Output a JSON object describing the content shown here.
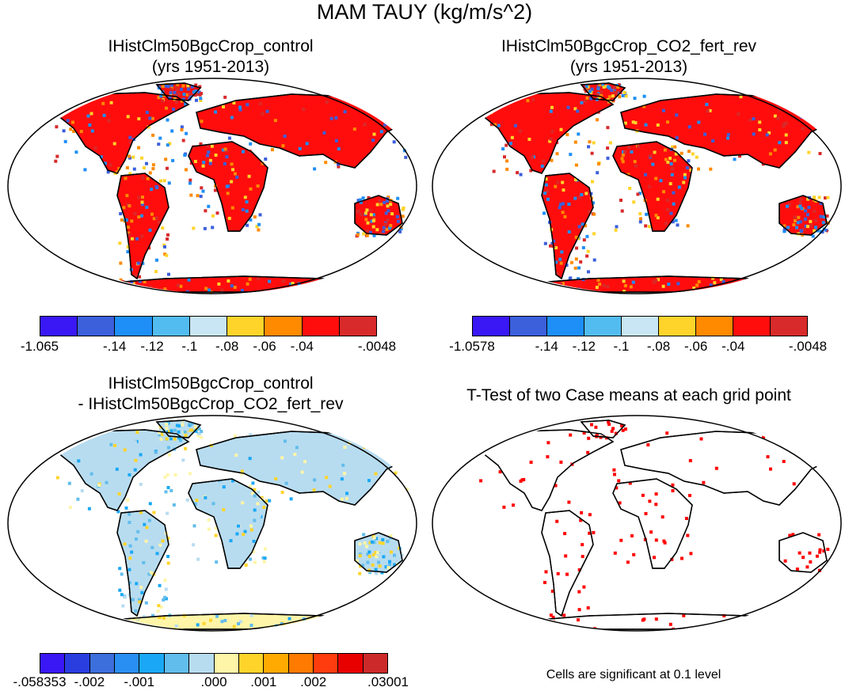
{
  "title": "MAM TAUY (kg/m/s^2)",
  "panels": [
    {
      "title_line1": "IHistClm50BgcCrop_control",
      "title_line2": "(yrs 1951-2013)",
      "colorbar": {
        "colors": [
          "#3a17f5",
          "#3c5fdc",
          "#1e8ff7",
          "#52bcf0",
          "#c8e6f4",
          "#ffd42a",
          "#ff8a00",
          "#ff0d0d",
          "#d82a2a"
        ],
        "labels": [
          "-1.065",
          "-.14",
          "-.12",
          "-.1",
          "-.08",
          "-.06",
          "-.04",
          "-.0048"
        ]
      }
    },
    {
      "title_line1": "IHistClm50BgcCrop_CO2_fert_rev",
      "title_line2": "(yrs 1951-2013)",
      "colorbar": {
        "colors": [
          "#3a17f5",
          "#3c5fdc",
          "#1e8ff7",
          "#52bcf0",
          "#c8e6f4",
          "#ffd42a",
          "#ff8a00",
          "#ff0d0d",
          "#d82a2a"
        ],
        "labels": [
          "-1.0578",
          "-.14",
          "-.12",
          "-.1",
          "-.08",
          "-.06",
          "-.04",
          "-.0048"
        ]
      }
    },
    {
      "title_line1": "IHistClm50BgcCrop_control",
      "title_line2": "- IHistClm50BgcCrop_CO2_fert_rev",
      "colorbar": {
        "colors": [
          "#3a17f5",
          "#2a3ee0",
          "#3c6fdc",
          "#2a8ff2",
          "#1aa8f6",
          "#61bdec",
          "#b7dcf0",
          "#fff5a8",
          "#ffd42a",
          "#ffaa00",
          "#ff7a00",
          "#ff3c0d",
          "#e80000",
          "#cc2a2a"
        ],
        "labels": [
          "-.058353",
          "-.002",
          "-.001",
          ".000",
          ".001",
          ".002",
          ".03001"
        ]
      }
    },
    {
      "title_line1": "T-Test of two Case means at each grid point",
      "note": "Cells are significant at 0.1 level",
      "significant_color": "#ff0000"
    }
  ]
}
